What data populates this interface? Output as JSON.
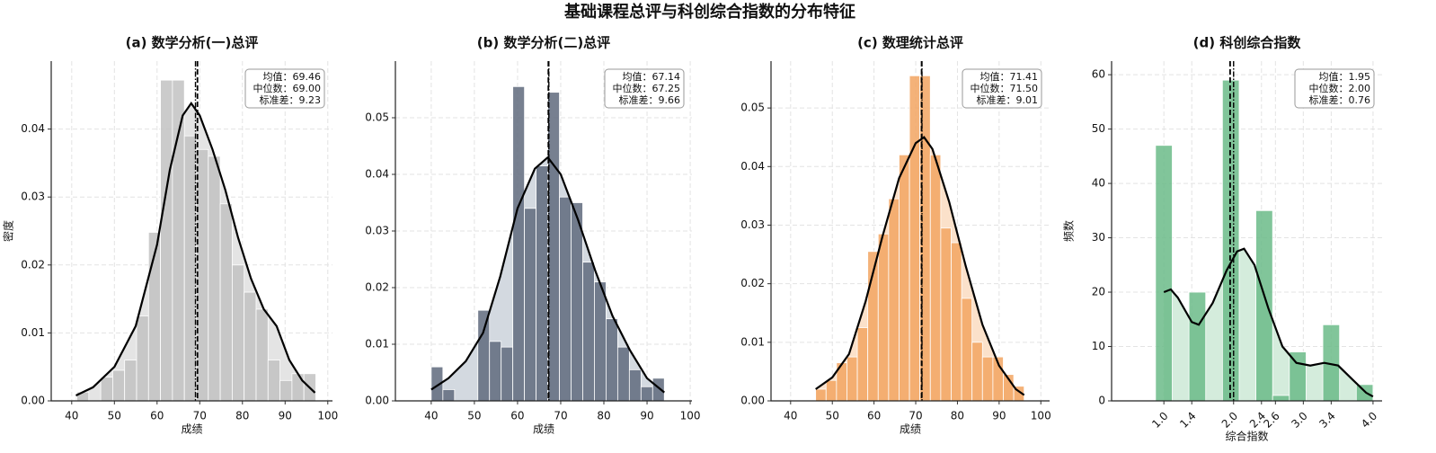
{
  "title": "基础课程总评与科创综合指数的分布特征",
  "chart_data": [
    {
      "type": "histogram",
      "title": "(a) 数学分析(一)总评",
      "xlabel": "成绩",
      "ylabel": "密度",
      "color": "#c2c2c2",
      "kde_color": "#000000",
      "kde_fill": "#e4e4e4",
      "grid": true,
      "bins": [
        41.2,
        44.0,
        46.8,
        49.6,
        52.4,
        55.2,
        58.0,
        60.8,
        63.6,
        66.4,
        69.2,
        72.0,
        74.8,
        77.6,
        80.4,
        83.2,
        86.0,
        88.8,
        91.6,
        94.4,
        97.2
      ],
      "values": [
        0.0013,
        0.0,
        0.0035,
        0.0045,
        0.006,
        0.0125,
        0.0248,
        0.0472,
        0.0472,
        0.039,
        0.037,
        0.036,
        0.029,
        0.02,
        0.016,
        0.0135,
        0.006,
        0.003,
        0.004,
        0.004
      ],
      "kde": {
        "x": [
          41,
          45,
          50,
          55,
          60,
          63,
          66,
          68,
          70,
          73,
          76,
          79,
          82,
          85,
          88,
          91,
          94,
          97
        ],
        "y": [
          0.0008,
          0.002,
          0.005,
          0.011,
          0.023,
          0.034,
          0.042,
          0.0438,
          0.042,
          0.037,
          0.031,
          0.024,
          0.018,
          0.0135,
          0.011,
          0.006,
          0.003,
          0.0012
        ]
      },
      "stats": {
        "values": [
          69.46,
          69.0,
          9.23
        ],
        "value_labels": [
          "均值：69.46",
          "中位数：69.00",
          "标准差：9.23"
        ]
      },
      "xlim": [
        35.2,
        101.1
      ],
      "ylim": [
        0,
        0.05
      ],
      "xticks": [
        40,
        50,
        60,
        70,
        80,
        90,
        100
      ],
      "yticks": [
        {
          "value": 0,
          "label": "0.00"
        },
        0.01,
        0.02,
        0.03,
        0.04
      ]
    },
    {
      "type": "histogram",
      "title": "(b) 数学分析(二)总评",
      "xlabel": "成绩",
      "color": "#5f6a7c",
      "kde_color": "#000000",
      "kde_fill": "#d3d9e0",
      "grid": true,
      "bins": [
        40.0,
        42.7,
        45.4,
        48.1,
        50.8,
        53.5,
        56.2,
        58.9,
        61.6,
        64.3,
        67.0,
        69.7,
        72.4,
        75.1,
        77.8,
        80.5,
        83.2,
        85.9,
        88.6,
        91.3,
        94.0
      ],
      "values": [
        0.006,
        0.002,
        0.0,
        0.0,
        0.016,
        0.0105,
        0.0095,
        0.0555,
        0.034,
        0.0415,
        0.0545,
        0.036,
        0.035,
        0.0245,
        0.021,
        0.0145,
        0.0095,
        0.0055,
        0.0025,
        0.004
      ],
      "kde": {
        "x": [
          40,
          44,
          48,
          52,
          56,
          60,
          64,
          67,
          70,
          74,
          78,
          82,
          86,
          90,
          94
        ],
        "y": [
          0.002,
          0.004,
          0.007,
          0.012,
          0.022,
          0.034,
          0.041,
          0.043,
          0.04,
          0.032,
          0.023,
          0.015,
          0.009,
          0.004,
          0.0015
        ]
      },
      "stats": {
        "values": [
          67.14,
          67.25,
          9.66
        ],
        "value_labels": [
          "均值：67.14",
          "中位数：67.25",
          "标准差：9.66"
        ]
      },
      "xlim": [
        31.7,
        100.4
      ],
      "ylim": [
        0,
        0.06
      ],
      "xticks": [
        40,
        50,
        60,
        70,
        80,
        90,
        100
      ],
      "yticks": [
        {
          "value": 0,
          "label": "0.00"
        },
        0.01,
        0.02,
        0.03,
        0.04,
        0.05
      ]
    },
    {
      "type": "histogram",
      "title": "(c) 数理统计总评",
      "xlabel": "成绩",
      "color": "#f2a462",
      "kde_color": "#000000",
      "kde_fill": "#fbe1ca",
      "grid": true,
      "bins": [
        46.0,
        48.5,
        51.0,
        53.5,
        56.0,
        58.5,
        61.0,
        63.5,
        66.0,
        68.5,
        71.0,
        73.5,
        76.0,
        78.5,
        81.0,
        83.5,
        86.0,
        88.5,
        91.0,
        93.5,
        96.0
      ],
      "values": [
        0.002,
        0.0035,
        0.0065,
        0.0075,
        0.0125,
        0.0255,
        0.0285,
        0.0345,
        0.042,
        0.0555,
        0.0555,
        0.042,
        0.0295,
        0.027,
        0.0175,
        0.01,
        0.0075,
        0.0075,
        0.0045,
        0.0025
      ],
      "kde": {
        "x": [
          46,
          50,
          54,
          58,
          62,
          66,
          70,
          72,
          74,
          78,
          82,
          86,
          90,
          94,
          96
        ],
        "y": [
          0.002,
          0.004,
          0.008,
          0.017,
          0.028,
          0.038,
          0.044,
          0.045,
          0.043,
          0.034,
          0.023,
          0.013,
          0.006,
          0.002,
          0.001
        ]
      },
      "stats": {
        "values": [
          71.41,
          71.5,
          9.01
        ],
        "value_labels": [
          "均值：71.41",
          "中位数：71.50",
          "标准差：9.01"
        ]
      },
      "xlim": [
        35.3,
        102.1
      ],
      "ylim": [
        0,
        0.058
      ],
      "xticks": [
        40,
        50,
        60,
        70,
        80,
        90,
        100
      ],
      "yticks": [
        {
          "value": 0,
          "label": "0.00"
        },
        0.01,
        0.02,
        0.03,
        0.04,
        0.05
      ]
    },
    {
      "type": "histogram",
      "title": "(d) 科创综合指数",
      "xlabel": "综合指数",
      "ylabel": "频数",
      "color": "#6bbb88",
      "kde_color": "#000000",
      "kde_fill": "#d4ecdc",
      "grid": true,
      "xtick_rotation": 45,
      "bins": [
        0.88,
        1.12,
        1.36,
        1.6,
        1.84,
        2.08,
        2.32,
        2.56,
        2.8,
        3.04,
        3.28,
        3.52,
        3.76,
        4.0
      ],
      "values": [
        47,
        0,
        20,
        0,
        59,
        0,
        35,
        1,
        9,
        0,
        14,
        0,
        3
      ],
      "kde": {
        "x": [
          1.0,
          1.1,
          1.2,
          1.4,
          1.5,
          1.7,
          1.9,
          2.05,
          2.15,
          2.3,
          2.5,
          2.7,
          2.9,
          3.1,
          3.3,
          3.5,
          3.7,
          3.9,
          4.0
        ],
        "y": [
          20,
          20.5,
          19,
          14.5,
          14,
          18,
          24,
          27.5,
          28,
          25,
          17,
          10,
          7,
          6.5,
          7,
          6.5,
          4,
          1.5,
          0.8
        ]
      },
      "stats": {
        "values": [
          1.95,
          2.0,
          0.76
        ],
        "value_labels": [
          "均值：1.95",
          "中位数：2.00",
          "标准差：0.76"
        ]
      },
      "xlim": [
        0.25,
        4.13
      ],
      "ylim": [
        0,
        62.5
      ],
      "xticks": [
        {
          "value": 1,
          "label": "1.0"
        },
        1.4,
        {
          "value": 2,
          "label": "2.0"
        },
        2.4,
        2.6,
        {
          "value": 3,
          "label": "3.0"
        },
        3.4,
        {
          "value": 4,
          "label": "4.0"
        }
      ],
      "yticks": [
        0,
        10,
        20,
        30,
        40,
        50,
        60
      ]
    }
  ]
}
